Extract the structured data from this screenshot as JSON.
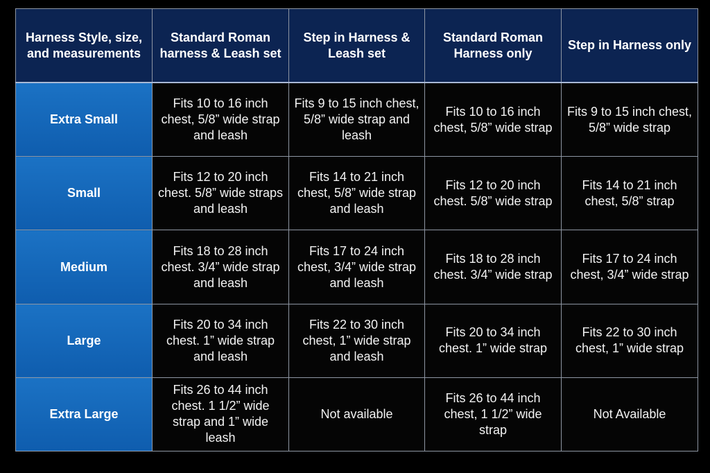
{
  "table": {
    "headers": [
      "Harness Style, size, and measurements",
      "Standard Roman harness & Leash set",
      "Step in Harness & Leash set",
      "Standard Roman Harness only",
      "Step in Harness only"
    ],
    "rows": [
      {
        "size": "Extra Small",
        "cells": [
          "Fits 10 to 16 inch chest, 5/8” wide strap and leash",
          "Fits 9 to 15 inch chest, 5/8” wide strap and leash",
          "Fits 10 to 16 inch chest, 5/8” wide strap",
          "Fits 9 to 15 inch chest, 5/8” wide strap"
        ]
      },
      {
        "size": "Small",
        "cells": [
          "Fits 12 to 20 inch chest. 5/8” wide straps and leash",
          "Fits 14 to 21 inch chest, 5/8” wide strap and leash",
          "Fits 12 to 20 inch chest. 5/8” wide strap",
          "Fits 14 to 21 inch chest, 5/8” strap"
        ]
      },
      {
        "size": "Medium",
        "cells": [
          "Fits 18 to 28 inch chest. 3/4” wide strap and leash",
          "Fits 17 to 24 inch chest, 3/4” wide strap and leash",
          "Fits 18 to 28 inch chest. 3/4” wide strap",
          "Fits 17 to 24 inch chest, 3/4” wide strap"
        ]
      },
      {
        "size": "Large",
        "cells": [
          "Fits 20 to 34 inch chest. 1” wide strap and leash",
          "Fits 22 to 30 inch chest, 1” wide strap and leash",
          "Fits 20 to 34 inch chest. 1” wide strap",
          "Fits 22 to 30 inch chest, 1” wide strap"
        ]
      },
      {
        "size": "Extra Large",
        "cells": [
          "Fits 26 to 44 inch chest. 1 1/2” wide strap and 1” wide leash",
          "Not available",
          "Fits 26 to 44 inch chest, 1 1/2” wide strap",
          "Not Available"
        ]
      }
    ]
  },
  "colors": {
    "header_bg": "#0c2452",
    "size_bg": "#1b72c4",
    "cell_bg": "#050505",
    "border": "#8e96a3"
  }
}
